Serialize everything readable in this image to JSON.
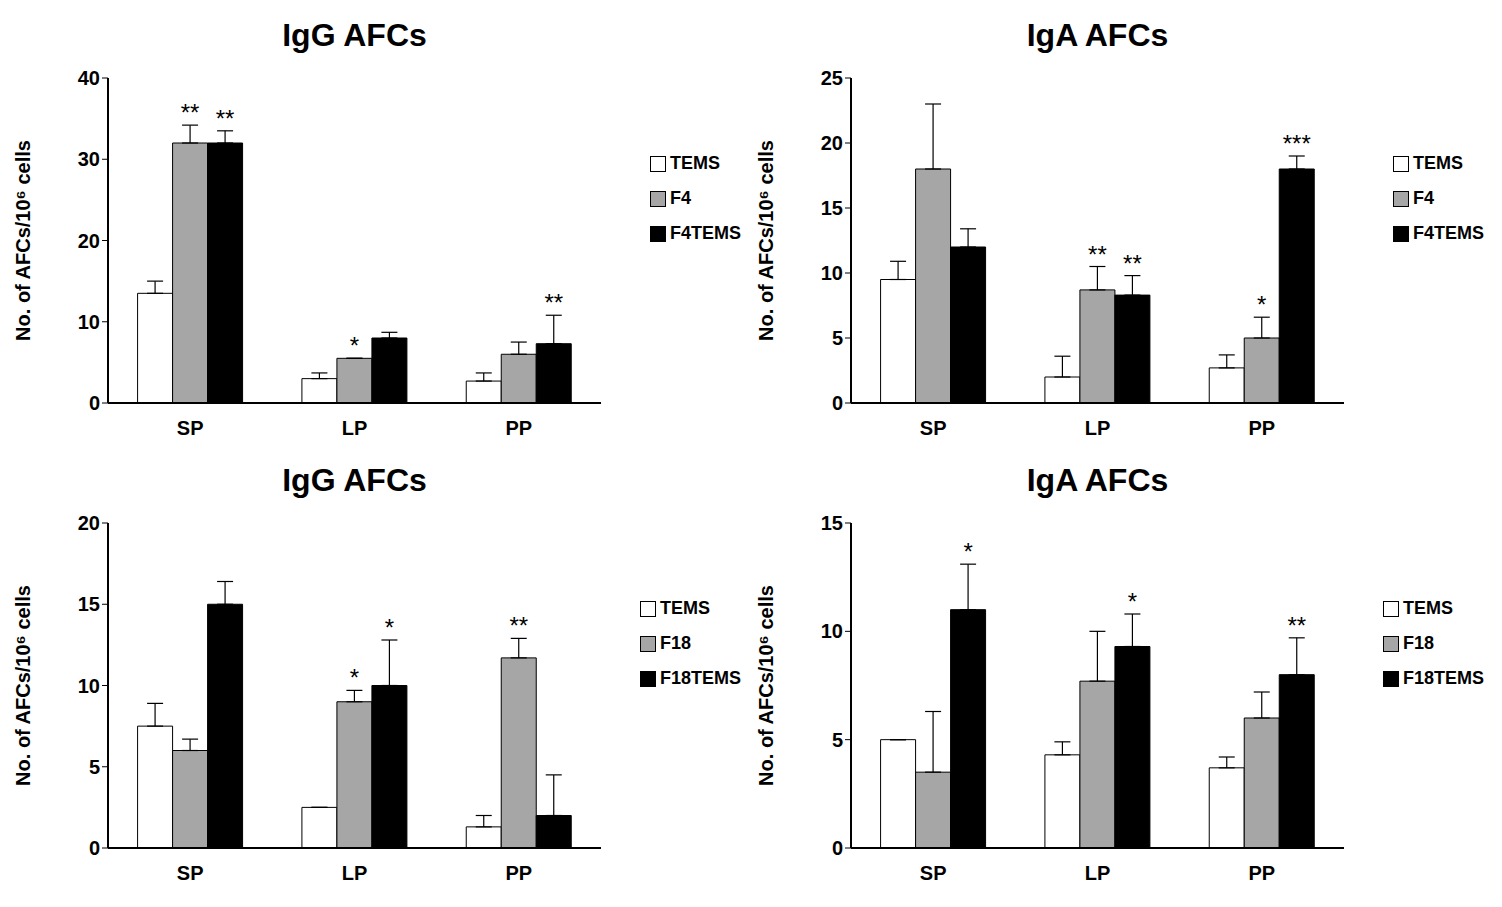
{
  "chart_data": [
    {
      "type": "bar",
      "title": "IgG AFCs",
      "y_label": "No. of AFCs/10⁶ cells",
      "categories": [
        "SP",
        "LP",
        "PP"
      ],
      "ylim": [
        0,
        40
      ],
      "yticks": [
        0,
        10,
        20,
        30,
        40
      ],
      "legend": "right",
      "series": [
        {
          "name": "TEMS",
          "color": "#ffffff",
          "values": [
            13.5,
            3,
            2.7
          ],
          "errors": [
            1.5,
            0.7,
            1.0
          ],
          "significance": [
            null,
            null,
            null
          ]
        },
        {
          "name": "F4",
          "color": "#a6a6a6",
          "values": [
            32,
            5.5,
            6
          ],
          "errors": [
            2.2,
            0,
            1.5
          ],
          "significance": [
            "**",
            "*",
            null
          ]
        },
        {
          "name": "F4TEMS",
          "color": "#000000",
          "values": [
            32,
            8,
            7.3
          ],
          "errors": [
            1.5,
            0.7,
            3.5
          ],
          "significance": [
            "**",
            null,
            "**"
          ]
        }
      ]
    },
    {
      "type": "bar",
      "title": "IgA AFCs",
      "y_label": "No. of AFCs/10⁶ cells",
      "categories": [
        "SP",
        "LP",
        "PP"
      ],
      "ylim": [
        0,
        25
      ],
      "yticks": [
        0,
        5,
        10,
        15,
        20,
        25
      ],
      "legend": "right",
      "series": [
        {
          "name": "TEMS",
          "color": "#ffffff",
          "values": [
            9.5,
            2,
            2.7
          ],
          "errors": [
            1.4,
            1.6,
            1.0
          ],
          "significance": [
            null,
            null,
            null
          ]
        },
        {
          "name": "F4",
          "color": "#a6a6a6",
          "values": [
            18,
            8.7,
            5
          ],
          "errors": [
            5,
            1.8,
            1.6
          ],
          "significance": [
            null,
            "**",
            "*"
          ]
        },
        {
          "name": "F4TEMS",
          "color": "#000000",
          "values": [
            12,
            8.3,
            18
          ],
          "errors": [
            1.4,
            1.5,
            1.0
          ],
          "significance": [
            null,
            "**",
            "***"
          ]
        }
      ]
    },
    {
      "type": "bar",
      "title": "IgG AFCs",
      "y_label": "No. of AFCs/10⁶ cells",
      "categories": [
        "SP",
        "LP",
        "PP"
      ],
      "ylim": [
        0,
        20
      ],
      "yticks": [
        0,
        5,
        10,
        15,
        20
      ],
      "legend": "right",
      "series": [
        {
          "name": "TEMS",
          "color": "#ffffff",
          "values": [
            7.5,
            2.5,
            1.3
          ],
          "errors": [
            1.4,
            0,
            0.7
          ],
          "significance": [
            null,
            null,
            null
          ]
        },
        {
          "name": "F18",
          "color": "#a6a6a6",
          "values": [
            6,
            9,
            11.7
          ],
          "errors": [
            0.7,
            0.7,
            1.2
          ],
          "significance": [
            null,
            "*",
            "**"
          ]
        },
        {
          "name": "F18TEMS",
          "color": "#000000",
          "values": [
            15,
            10,
            2
          ],
          "errors": [
            1.4,
            2.8,
            2.5
          ],
          "significance": [
            null,
            "*",
            null
          ]
        }
      ]
    },
    {
      "type": "bar",
      "title": "IgA AFCs",
      "y_label": "No. of AFCs/10⁶ cells",
      "categories": [
        "SP",
        "LP",
        "PP"
      ],
      "ylim": [
        0,
        15
      ],
      "yticks": [
        0,
        5,
        10,
        15
      ],
      "legend": "right",
      "series": [
        {
          "name": "TEMS",
          "color": "#ffffff",
          "values": [
            5,
            4.3,
            3.7
          ],
          "errors": [
            0,
            0.6,
            0.5
          ],
          "significance": [
            null,
            null,
            null
          ]
        },
        {
          "name": "F18",
          "color": "#a6a6a6",
          "values": [
            3.5,
            7.7,
            6
          ],
          "errors": [
            2.8,
            2.3,
            1.2
          ],
          "significance": [
            null,
            null,
            null
          ]
        },
        {
          "name": "F18TEMS",
          "color": "#000000",
          "values": [
            11,
            9.3,
            8
          ],
          "errors": [
            2.1,
            1.5,
            1.7
          ],
          "significance": [
            "*",
            "*",
            "**"
          ]
        }
      ]
    }
  ]
}
